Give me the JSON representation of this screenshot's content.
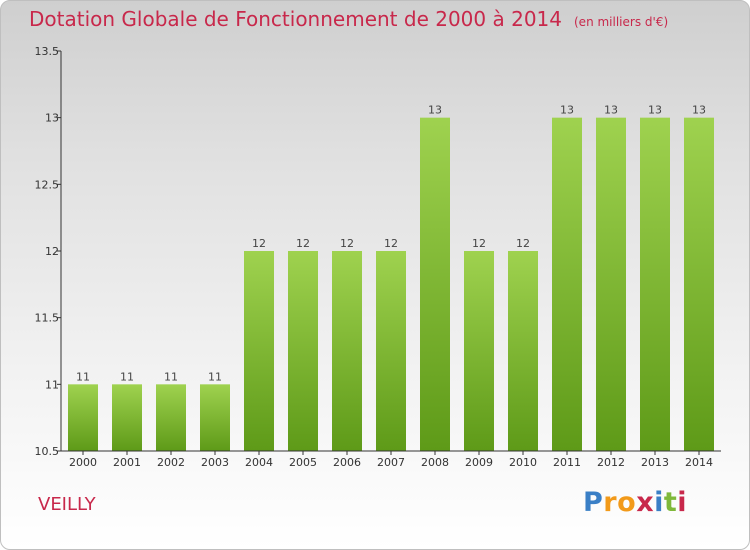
{
  "header": {
    "title": "Dotation Globale de Fonctionnement de 2000 à 2014",
    "unit": "(en milliers d'€)"
  },
  "commune": "VEILLY",
  "logo": {
    "text": "Proxiti"
  },
  "colors": {
    "title": "#c8284b",
    "bar_top": "#9fd24f",
    "bar_bottom": "#5e9a18",
    "axis": "#333333"
  },
  "chart_data": {
    "type": "bar",
    "title": "Dotation Globale de Fonctionnement de 2000 à 2014",
    "subtitle": "(en milliers d'€)",
    "xlabel": "",
    "ylabel": "",
    "categories": [
      "2000",
      "2001",
      "2002",
      "2003",
      "2004",
      "2005",
      "2006",
      "2007",
      "2008",
      "2009",
      "2010",
      "2011",
      "2012",
      "2013",
      "2014"
    ],
    "values": [
      11,
      11,
      11,
      11,
      12,
      12,
      12,
      12,
      13,
      12,
      12,
      13,
      13,
      13,
      13
    ],
    "data_labels": [
      "11",
      "11",
      "11",
      "11",
      "12",
      "12",
      "12",
      "12",
      "13",
      "12",
      "12",
      "13",
      "13",
      "13",
      "13"
    ],
    "ylim": [
      10.5,
      13.5
    ],
    "yticks": [
      10.5,
      11,
      11.5,
      12,
      12.5,
      13,
      13.5
    ],
    "ytick_labels": [
      "10.5",
      "11",
      "11.5",
      "12",
      "12.5",
      "13",
      "13.5"
    ],
    "grid": false,
    "legend": "none"
  }
}
